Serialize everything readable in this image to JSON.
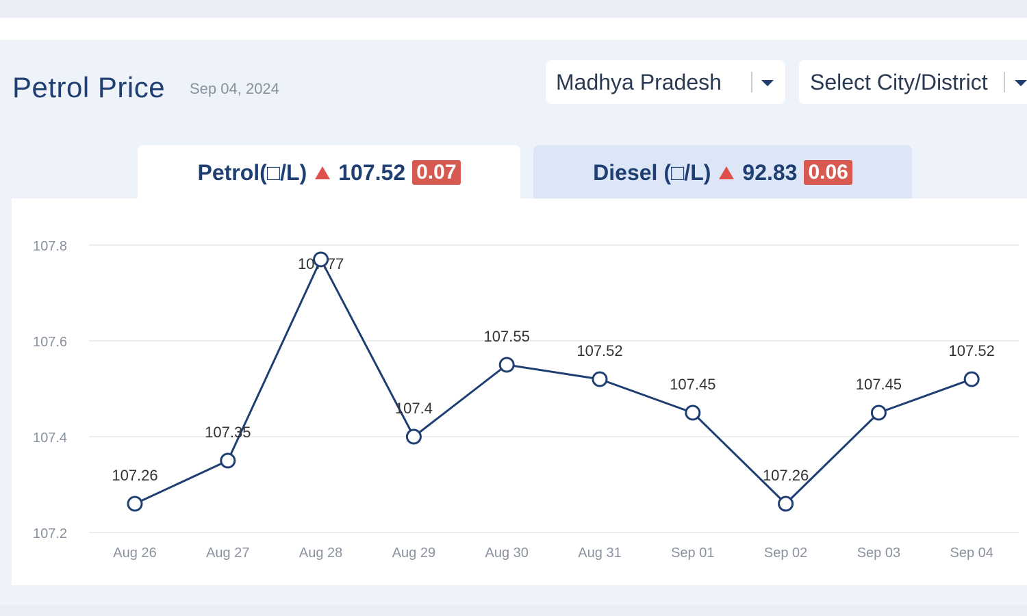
{
  "header": {
    "title": "Petrol Price",
    "date": "Sep 04, 2024"
  },
  "filters": {
    "state": "Madhya Pradesh",
    "city_placeholder": "Select City/District"
  },
  "tabs": [
    {
      "label": "Petrol(□/L)",
      "price": "107.52",
      "change": "0.07",
      "trend": "up",
      "active": true
    },
    {
      "label": "Diesel (□/L)",
      "price": "92.83",
      "change": "0.06",
      "trend": "up",
      "active": false
    }
  ],
  "icons": {
    "dropdown": "chevron-down-icon",
    "trend_up": "triangle-up-icon"
  },
  "colors": {
    "primary": "#1f3f73",
    "badge": "#d75a52",
    "trend_up": "#e0504a",
    "line": "#1f3f73",
    "grid": "#e6e9ee"
  },
  "chart_data": {
    "type": "line",
    "categories": [
      "Aug 26",
      "Aug 27",
      "Aug 28",
      "Aug 29",
      "Aug 30",
      "Aug 31",
      "Sep 01",
      "Sep 02",
      "Sep 03",
      "Sep 04"
    ],
    "values": [
      107.26,
      107.35,
      107.77,
      107.4,
      107.55,
      107.52,
      107.45,
      107.26,
      107.45,
      107.52
    ],
    "data_labels": [
      "107.26",
      "107.35",
      "107.77",
      "107.4",
      "107.55",
      "107.52",
      "107.45",
      "107.26",
      "107.45",
      "107.52"
    ],
    "yticks": [
      "107.2",
      "107.4",
      "107.6",
      "107.8"
    ],
    "ylim": [
      107.2,
      107.8
    ],
    "grid": true,
    "title": "",
    "xlabel": "",
    "ylabel": ""
  }
}
